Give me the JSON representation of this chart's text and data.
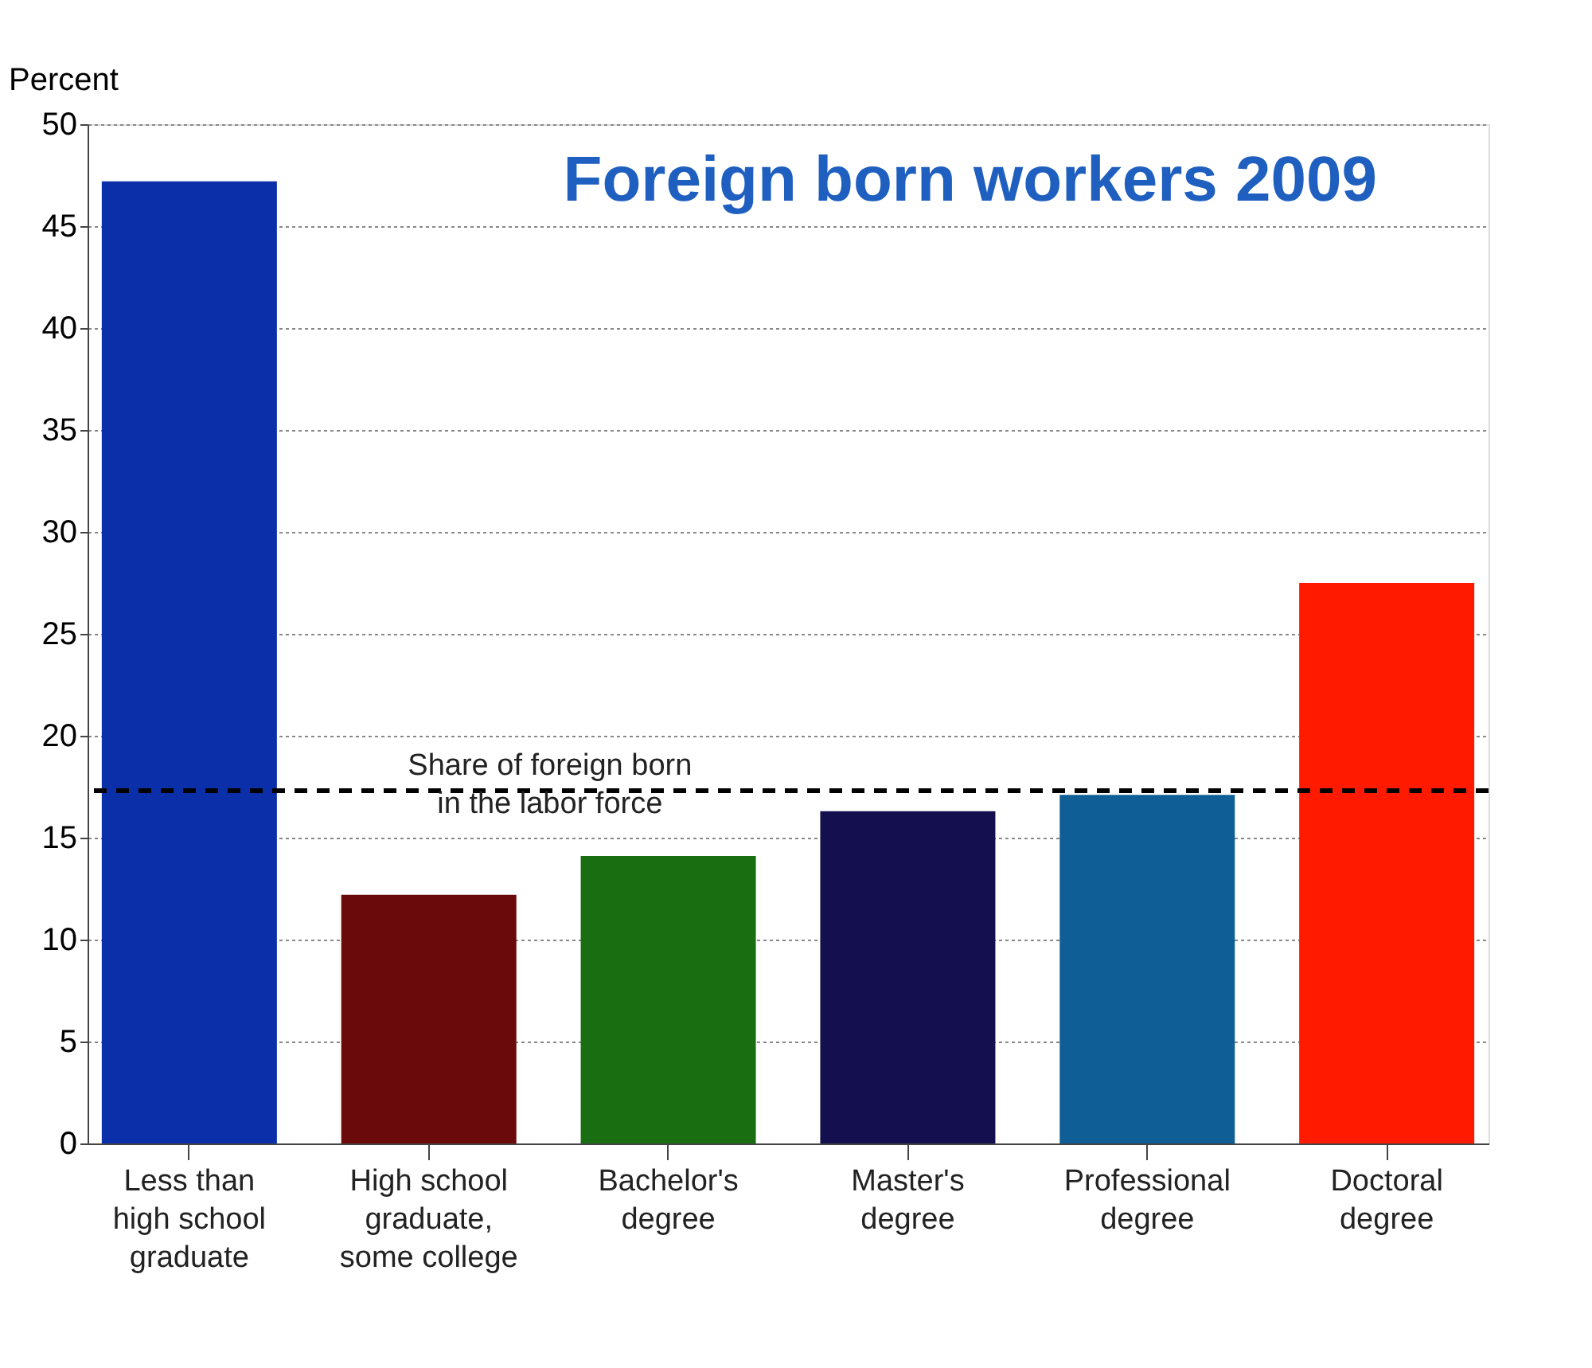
{
  "chart_data": {
    "type": "bar",
    "title": "Foreign born workers 2009",
    "ylabel": "Percent",
    "categories": [
      "Less than high school graduate",
      "High school graduate, some college",
      "Bachelor's degree",
      "Master's degree",
      "Professional degree",
      "Doctoral degree"
    ],
    "values": [
      47.2,
      12.2,
      14.1,
      16.3,
      17.1,
      27.5
    ],
    "colors": [
      "#0a2fa8",
      "#6b0a0a",
      "#1a6e12",
      "#14104f",
      "#0f5e96",
      "#ff1a00"
    ],
    "ylim": [
      0,
      50
    ],
    "yticks": [
      0,
      5,
      10,
      15,
      20,
      25,
      30,
      35,
      40,
      45,
      50
    ],
    "grid": "y",
    "ref_lines": [
      {
        "axis": "y",
        "value": 17.3,
        "label": "Share of foreign born in the labor force",
        "color": "#000000",
        "line_style": "dashed"
      }
    ]
  }
}
